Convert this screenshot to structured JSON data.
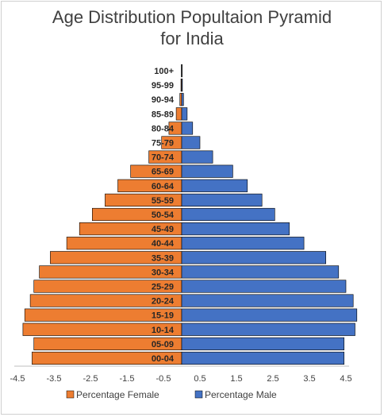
{
  "chart_data": {
    "type": "bar",
    "orientation": "horizontal",
    "stacked": true,
    "title_line1": "Age Distribution Popultaion Pyramid",
    "title_line2": "for India",
    "categories": [
      "00-04",
      "05-09",
      "10-14",
      "15-19",
      "20-24",
      "25-29",
      "30-34",
      "35-39",
      "40-44",
      "45-49",
      "50-54",
      "55-59",
      "60-64",
      "65-69",
      "70-74",
      "75-79",
      "80-84",
      "85-89",
      "90-94",
      "95-99",
      "100+"
    ],
    "series": [
      {
        "name": "Percentage Female",
        "color": "#ed7d31",
        "values": [
          -4.1,
          -4.05,
          -4.35,
          -4.3,
          -4.15,
          -4.05,
          -3.9,
          -3.6,
          -3.15,
          -2.8,
          -2.45,
          -2.1,
          -1.75,
          -1.4,
          -0.9,
          -0.55,
          -0.35,
          -0.15,
          -0.05,
          -0.02,
          -0.01
        ]
      },
      {
        "name": "Percentage Male",
        "color": "#4472c4",
        "values": [
          4.45,
          4.45,
          4.75,
          4.8,
          4.7,
          4.5,
          4.3,
          3.95,
          3.35,
          2.95,
          2.55,
          2.2,
          1.8,
          1.4,
          0.85,
          0.5,
          0.3,
          0.15,
          0.05,
          0.02,
          0.01
        ]
      }
    ],
    "x_ticks": [
      "-4.5",
      "-3.5",
      "-2.5",
      "-1.5",
      "-0.5",
      "0.5",
      "1.5",
      "2.5",
      "3.5",
      "4.5"
    ],
    "xlim": [
      -4.5,
      4.5
    ],
    "grid": false,
    "legend": "bottom"
  }
}
